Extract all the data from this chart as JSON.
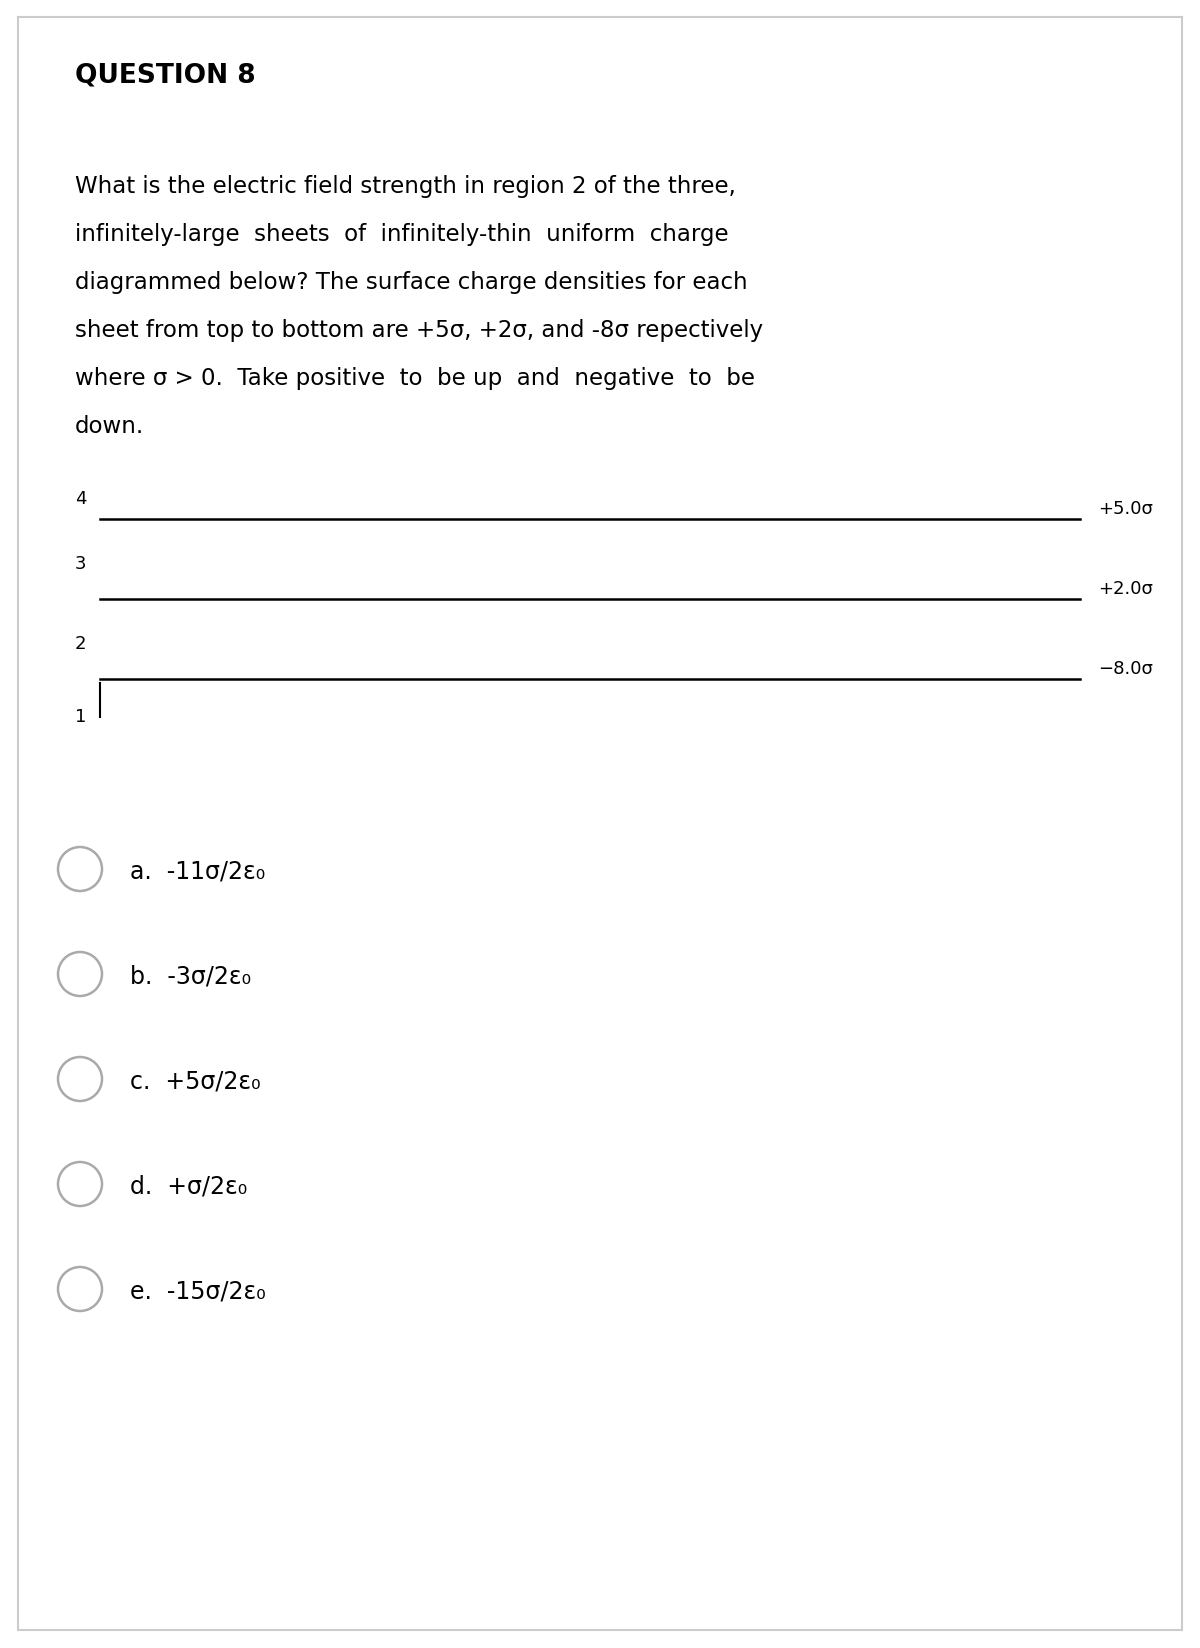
{
  "title": "QUESTION 8",
  "question_lines": [
    "What is the electric field strength in region 2 of the three,",
    "infinitely-large  sheets  of  infinitely-thin  uniform  charge",
    "diagrammed below? The surface charge densities for each",
    "sheet from top to bottom are +5σ, +2σ, and -8σ repectively",
    "where σ > 0.  Take positive  to  be up  and  negative  to  be",
    "down."
  ],
  "region_labels": [
    "4",
    "3",
    "2",
    "1"
  ],
  "charge_labels": [
    "+5.0σ",
    "+2.0σ",
    "−8.0σ"
  ],
  "answer_choices": [
    "a.  -11σ/2ε₀",
    "b.  -3σ/2ε₀",
    "c.  +5σ/2ε₀",
    "d.  +σ/2ε₀",
    "e.  -15σ/2ε₀"
  ],
  "bg_color": "#ffffff",
  "text_color": "#000000",
  "line_color": "#000000",
  "border_color": "#cccccc",
  "fig_width": 12.0,
  "fig_height": 16.49,
  "dpi": 100
}
